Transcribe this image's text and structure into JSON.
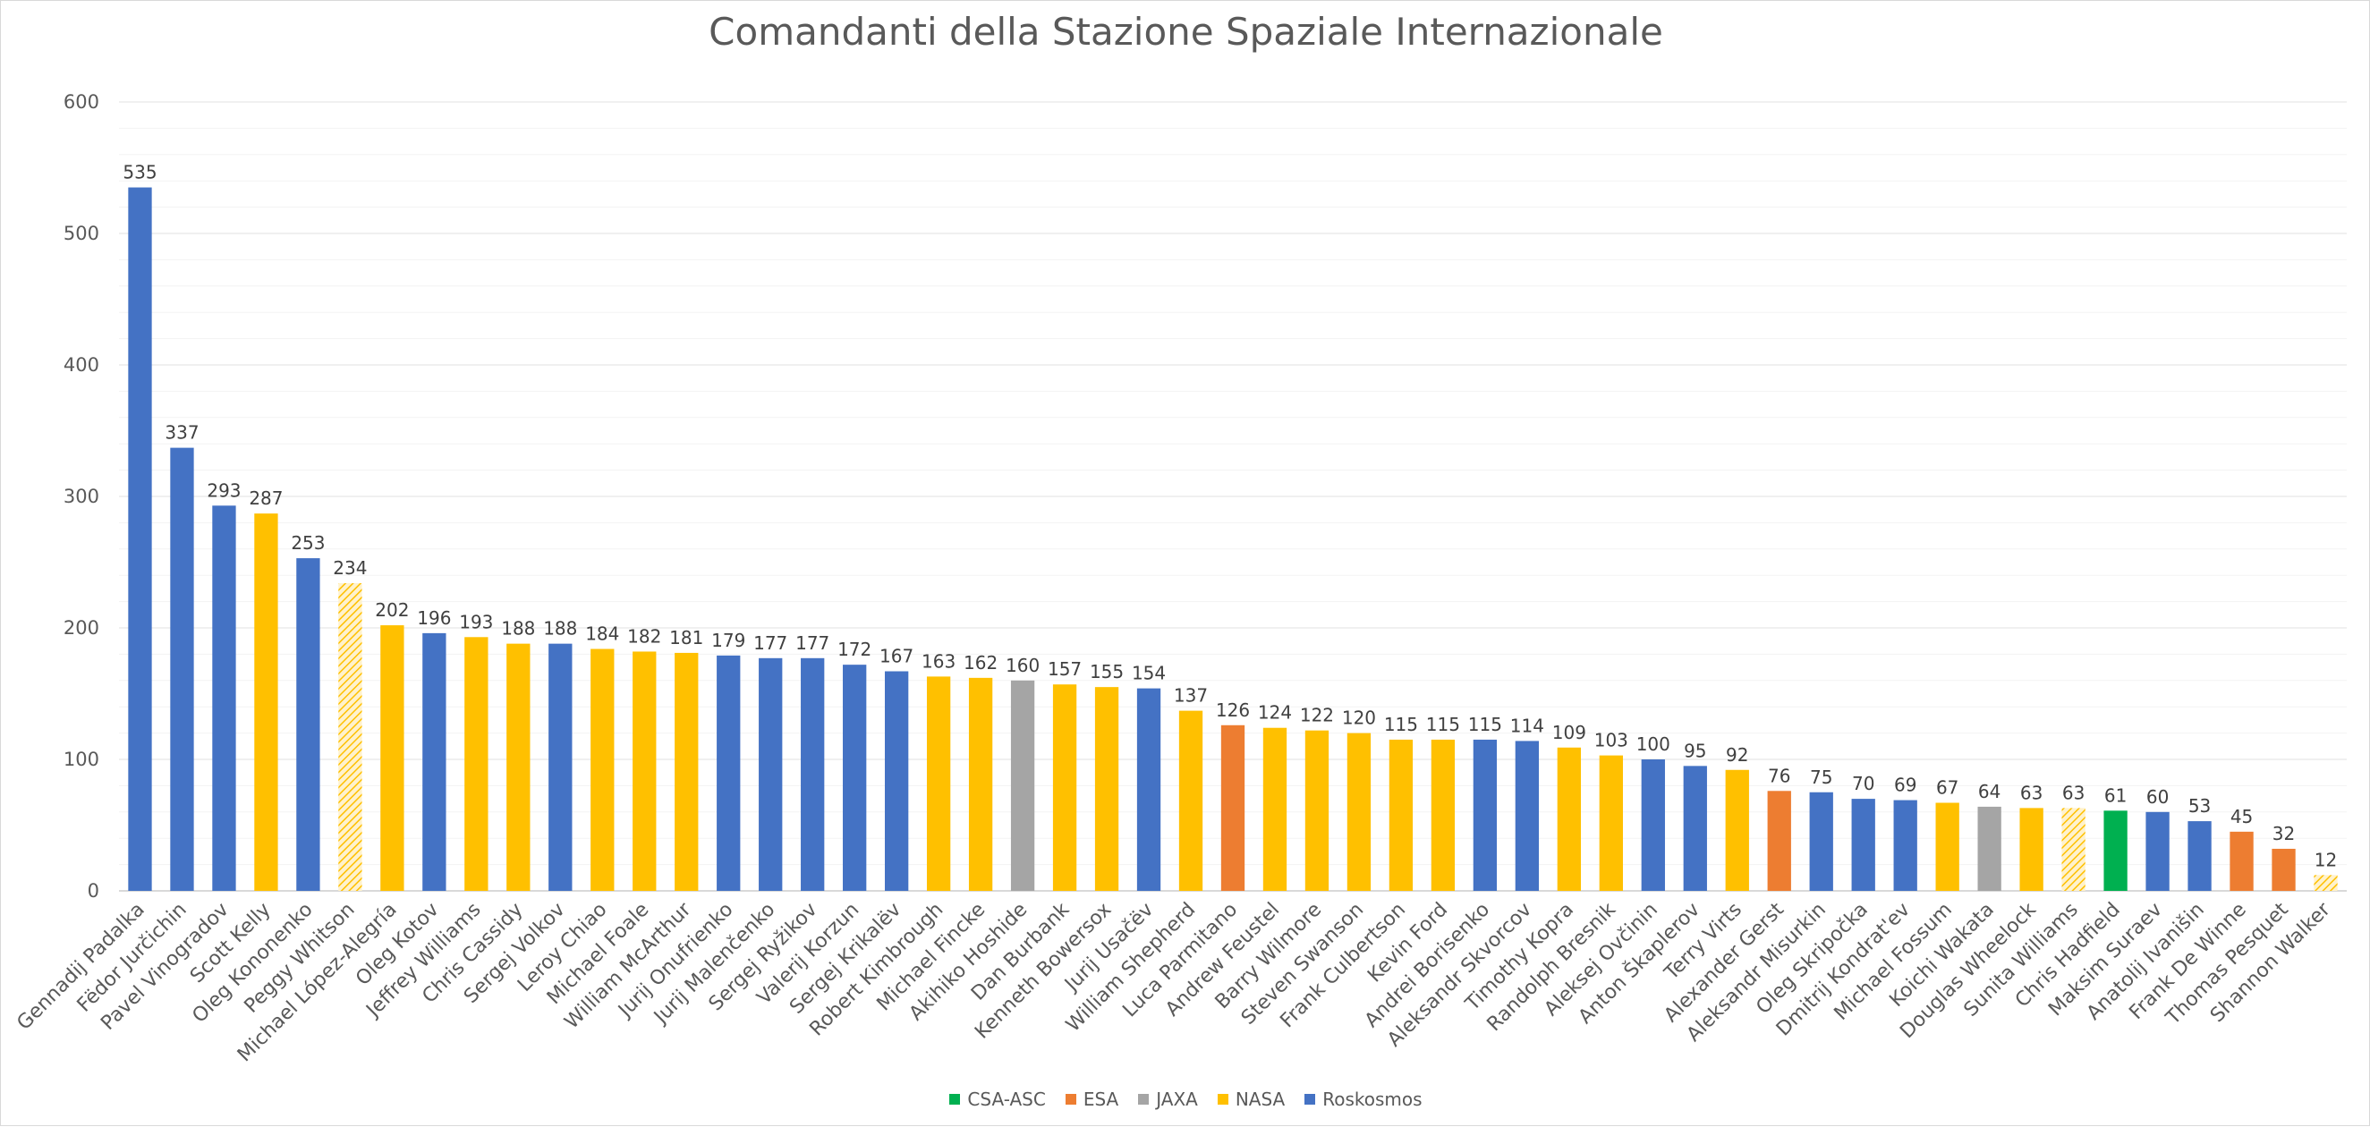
{
  "chart_data": {
    "type": "bar",
    "title": "Comandanti della Stazione Spaziale Internazionale",
    "xlabel": "",
    "ylabel": "",
    "ylim": [
      0,
      600
    ],
    "yticks": [
      0,
      100,
      200,
      300,
      400,
      500,
      600
    ],
    "grid": true,
    "legend_position": "bottom",
    "legend": [
      {
        "name": "CSA-ASC",
        "color": "#00b050"
      },
      {
        "name": "ESA",
        "color": "#ed7d31"
      },
      {
        "name": "JAXA",
        "color": "#a5a5a5"
      },
      {
        "name": "NASA",
        "color": "#ffc000"
      },
      {
        "name": "Roskosmos",
        "color": "#4472c4"
      }
    ],
    "categories": [
      "Gennadij Padalka",
      "Fëdor Jurčichin",
      "Pavel Vinogradov",
      "Scott Kelly",
      "Oleg Kononenko",
      "Peggy Whitson",
      "Michael López-Alegría",
      "Oleg Kotov",
      "Jeffrey Williams",
      "Chris Cassidy",
      "Sergej Volkov",
      "Leroy Chiao",
      "Michael Foale",
      "William McArthur",
      "Jurij Onufrienko",
      "Jurij Malenčenko",
      "Sergej Ryžikov",
      "Valerij Korzun",
      "Sergej Krikalëv",
      "Robert Kimbrough",
      "Michael Fincke",
      "Akihiko Hoshide",
      "Dan Burbank",
      "Kenneth Bowersox",
      "Jurij Usačëv",
      "William Shepherd",
      "Luca Parmitano",
      "Andrew Feustel",
      "Barry Wilmore",
      "Steven Swanson",
      "Frank Culbertson",
      "Kevin Ford",
      "Andrei Borisenko",
      "Aleksandr Skvorcov",
      "Timothy Kopra",
      "Randolph Bresnik",
      "Aleksej Ovčinin",
      "Anton Škaplerov",
      "Terry Virts",
      "Alexander Gerst",
      "Aleksandr Misurkin",
      "Oleg Skripočka",
      "Dmitrij Kondrat'ev",
      "Michael Fossum",
      "Koichi Wakata",
      "Douglas Wheelock",
      "Sunita Williams",
      "Chris Hadfield",
      "Maksim Suraev",
      "Anatolij Ivanišin",
      "Frank De Winne",
      "Thomas Pesquet",
      "Shannon Walker"
    ],
    "values": [
      535,
      337,
      293,
      287,
      253,
      234,
      202,
      196,
      193,
      188,
      188,
      184,
      182,
      181,
      179,
      177,
      177,
      172,
      167,
      163,
      162,
      160,
      157,
      155,
      154,
      137,
      126,
      124,
      122,
      120,
      115,
      115,
      115,
      114,
      109,
      103,
      100,
      95,
      92,
      76,
      75,
      70,
      69,
      67,
      64,
      63,
      63,
      61,
      60,
      53,
      45,
      32,
      12
    ],
    "agency": [
      "Roskosmos",
      "Roskosmos",
      "Roskosmos",
      "NASA",
      "Roskosmos",
      "NASA",
      "NASA",
      "Roskosmos",
      "NASA",
      "NASA",
      "Roskosmos",
      "NASA",
      "NASA",
      "NASA",
      "Roskosmos",
      "Roskosmos",
      "Roskosmos",
      "Roskosmos",
      "Roskosmos",
      "NASA",
      "NASA",
      "JAXA",
      "NASA",
      "NASA",
      "Roskosmos",
      "NASA",
      "ESA",
      "NASA",
      "NASA",
      "NASA",
      "NASA",
      "NASA",
      "Roskosmos",
      "Roskosmos",
      "NASA",
      "NASA",
      "Roskosmos",
      "Roskosmos",
      "NASA",
      "ESA",
      "Roskosmos",
      "Roskosmos",
      "Roskosmos",
      "NASA",
      "JAXA",
      "NASA",
      "NASA",
      "CSA-ASC",
      "Roskosmos",
      "Roskosmos",
      "ESA",
      "ESA",
      "NASA"
    ],
    "hatched": [
      false,
      false,
      false,
      false,
      false,
      true,
      false,
      false,
      false,
      false,
      false,
      false,
      false,
      false,
      false,
      false,
      false,
      false,
      false,
      false,
      false,
      false,
      false,
      false,
      false,
      false,
      false,
      false,
      false,
      false,
      false,
      false,
      false,
      false,
      false,
      false,
      false,
      false,
      false,
      false,
      false,
      false,
      false,
      false,
      false,
      false,
      true,
      false,
      false,
      false,
      false,
      false,
      true
    ]
  }
}
